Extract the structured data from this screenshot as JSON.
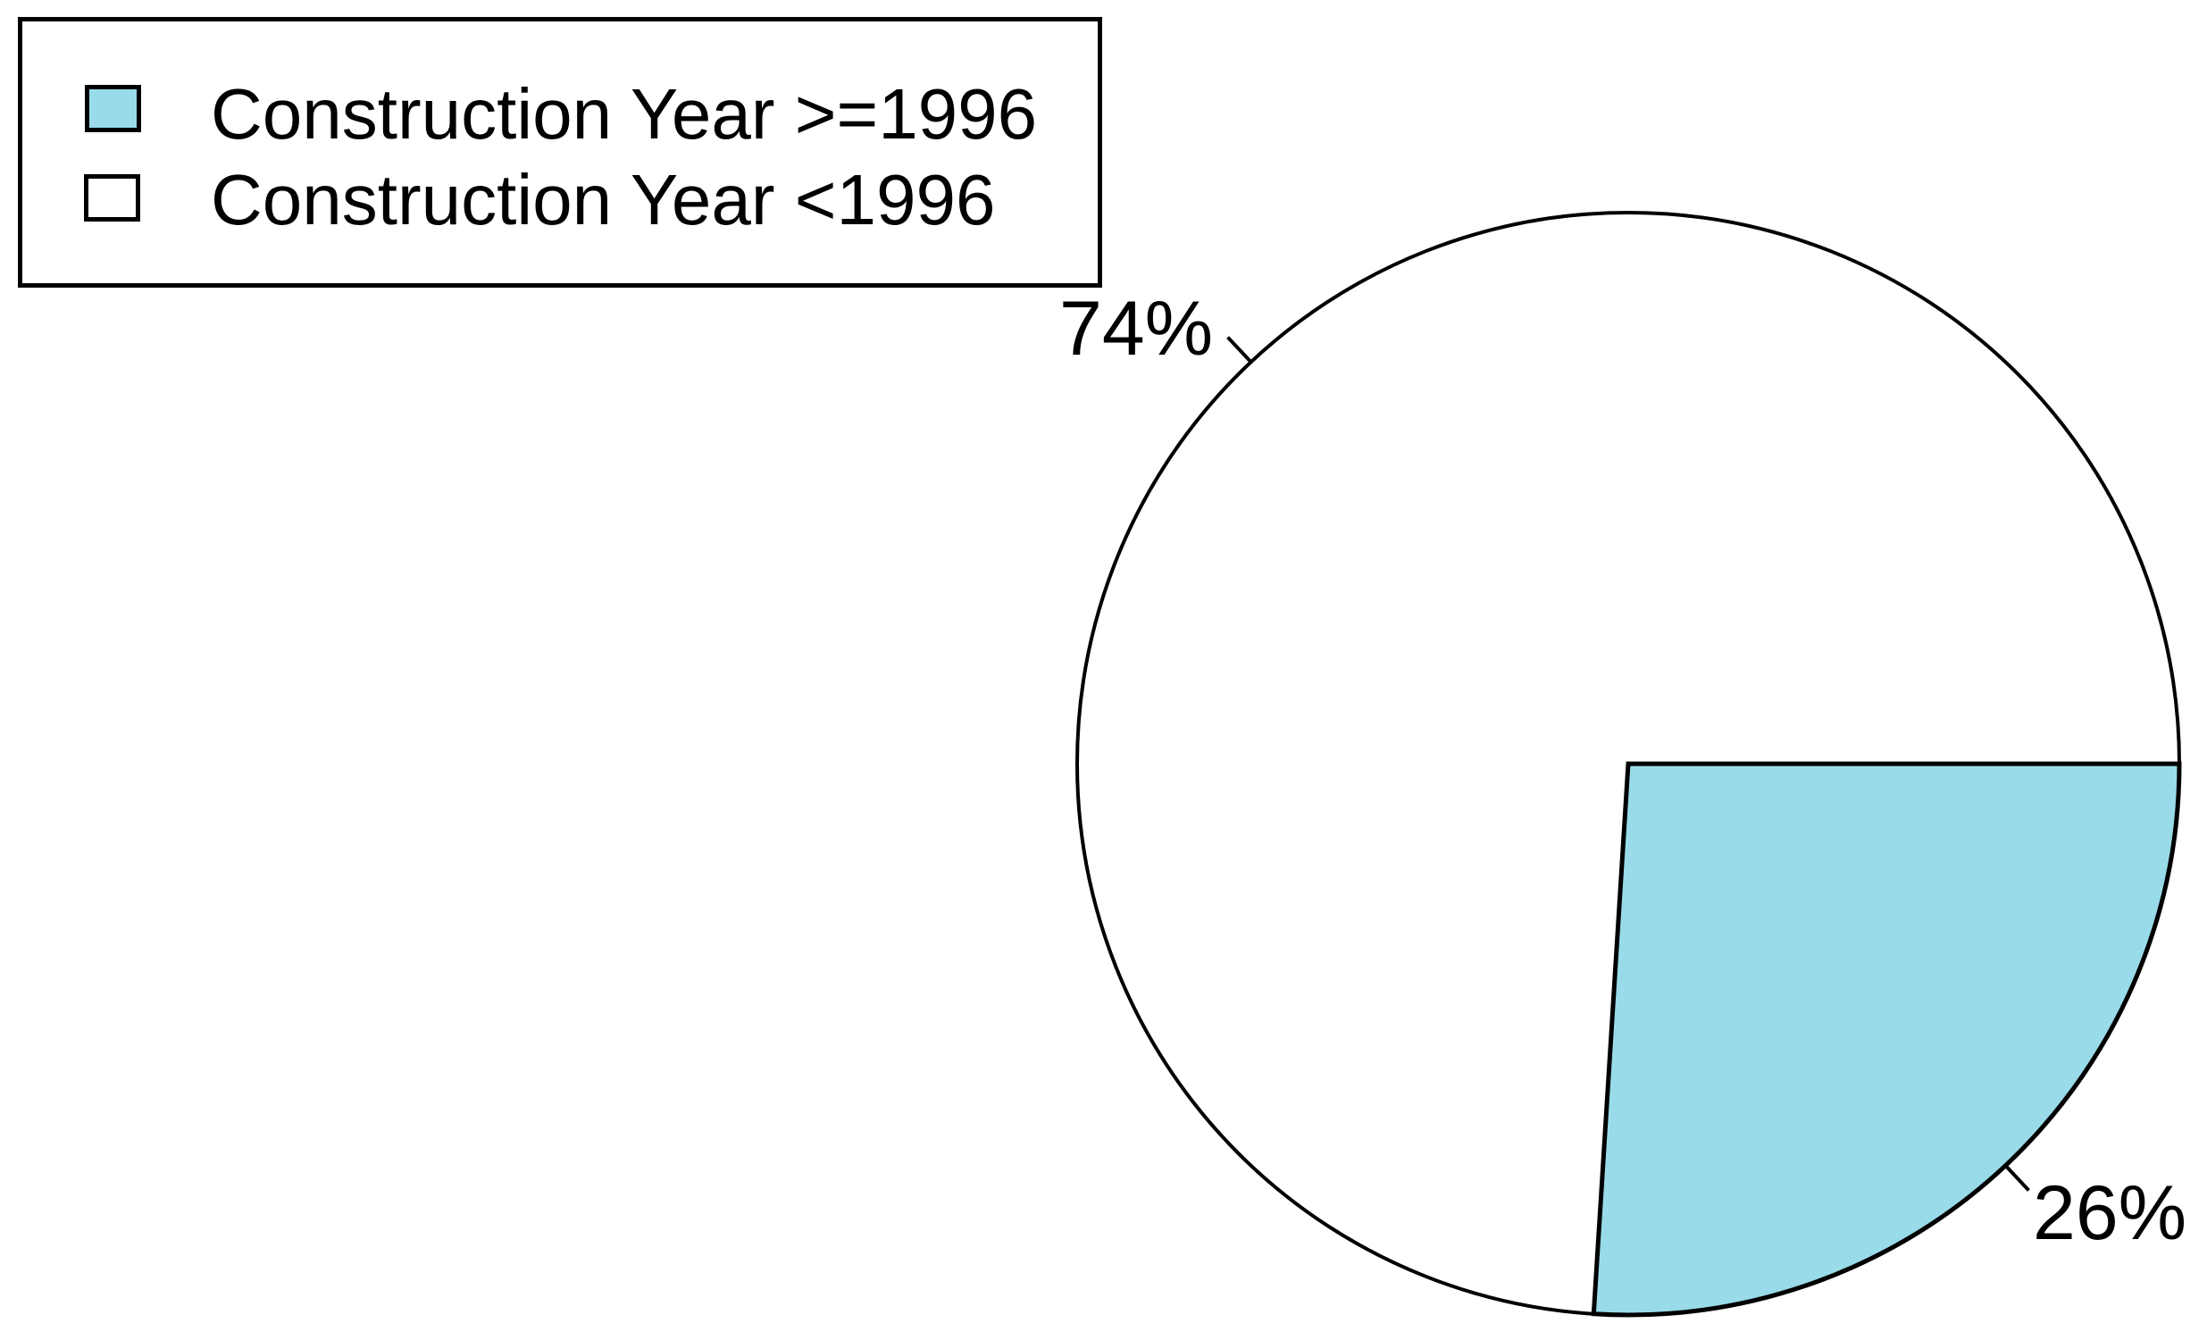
{
  "chart_data": {
    "type": "pie",
    "categories": [
      "Construction Year >=1996",
      "Construction Year <1996"
    ],
    "values": [
      26,
      74
    ],
    "unit": "percent",
    "labels": [
      "26%",
      "74%"
    ],
    "colors": [
      "#99dbe8",
      "#ffffff"
    ],
    "outline_color": "#000000",
    "start_angle_deg": 0,
    "direction": "clockwise",
    "legend_position": "top-left",
    "title": "",
    "xlabel": "",
    "ylabel": ""
  },
  "legend": {
    "items": [
      {
        "label": "Construction Year >=1996",
        "swatch_color": "#99dbe8"
      },
      {
        "label": "Construction Year <1996",
        "swatch_color": "#ffffff"
      }
    ]
  },
  "pie_labels": {
    "blue": "26%",
    "white": "74%"
  }
}
